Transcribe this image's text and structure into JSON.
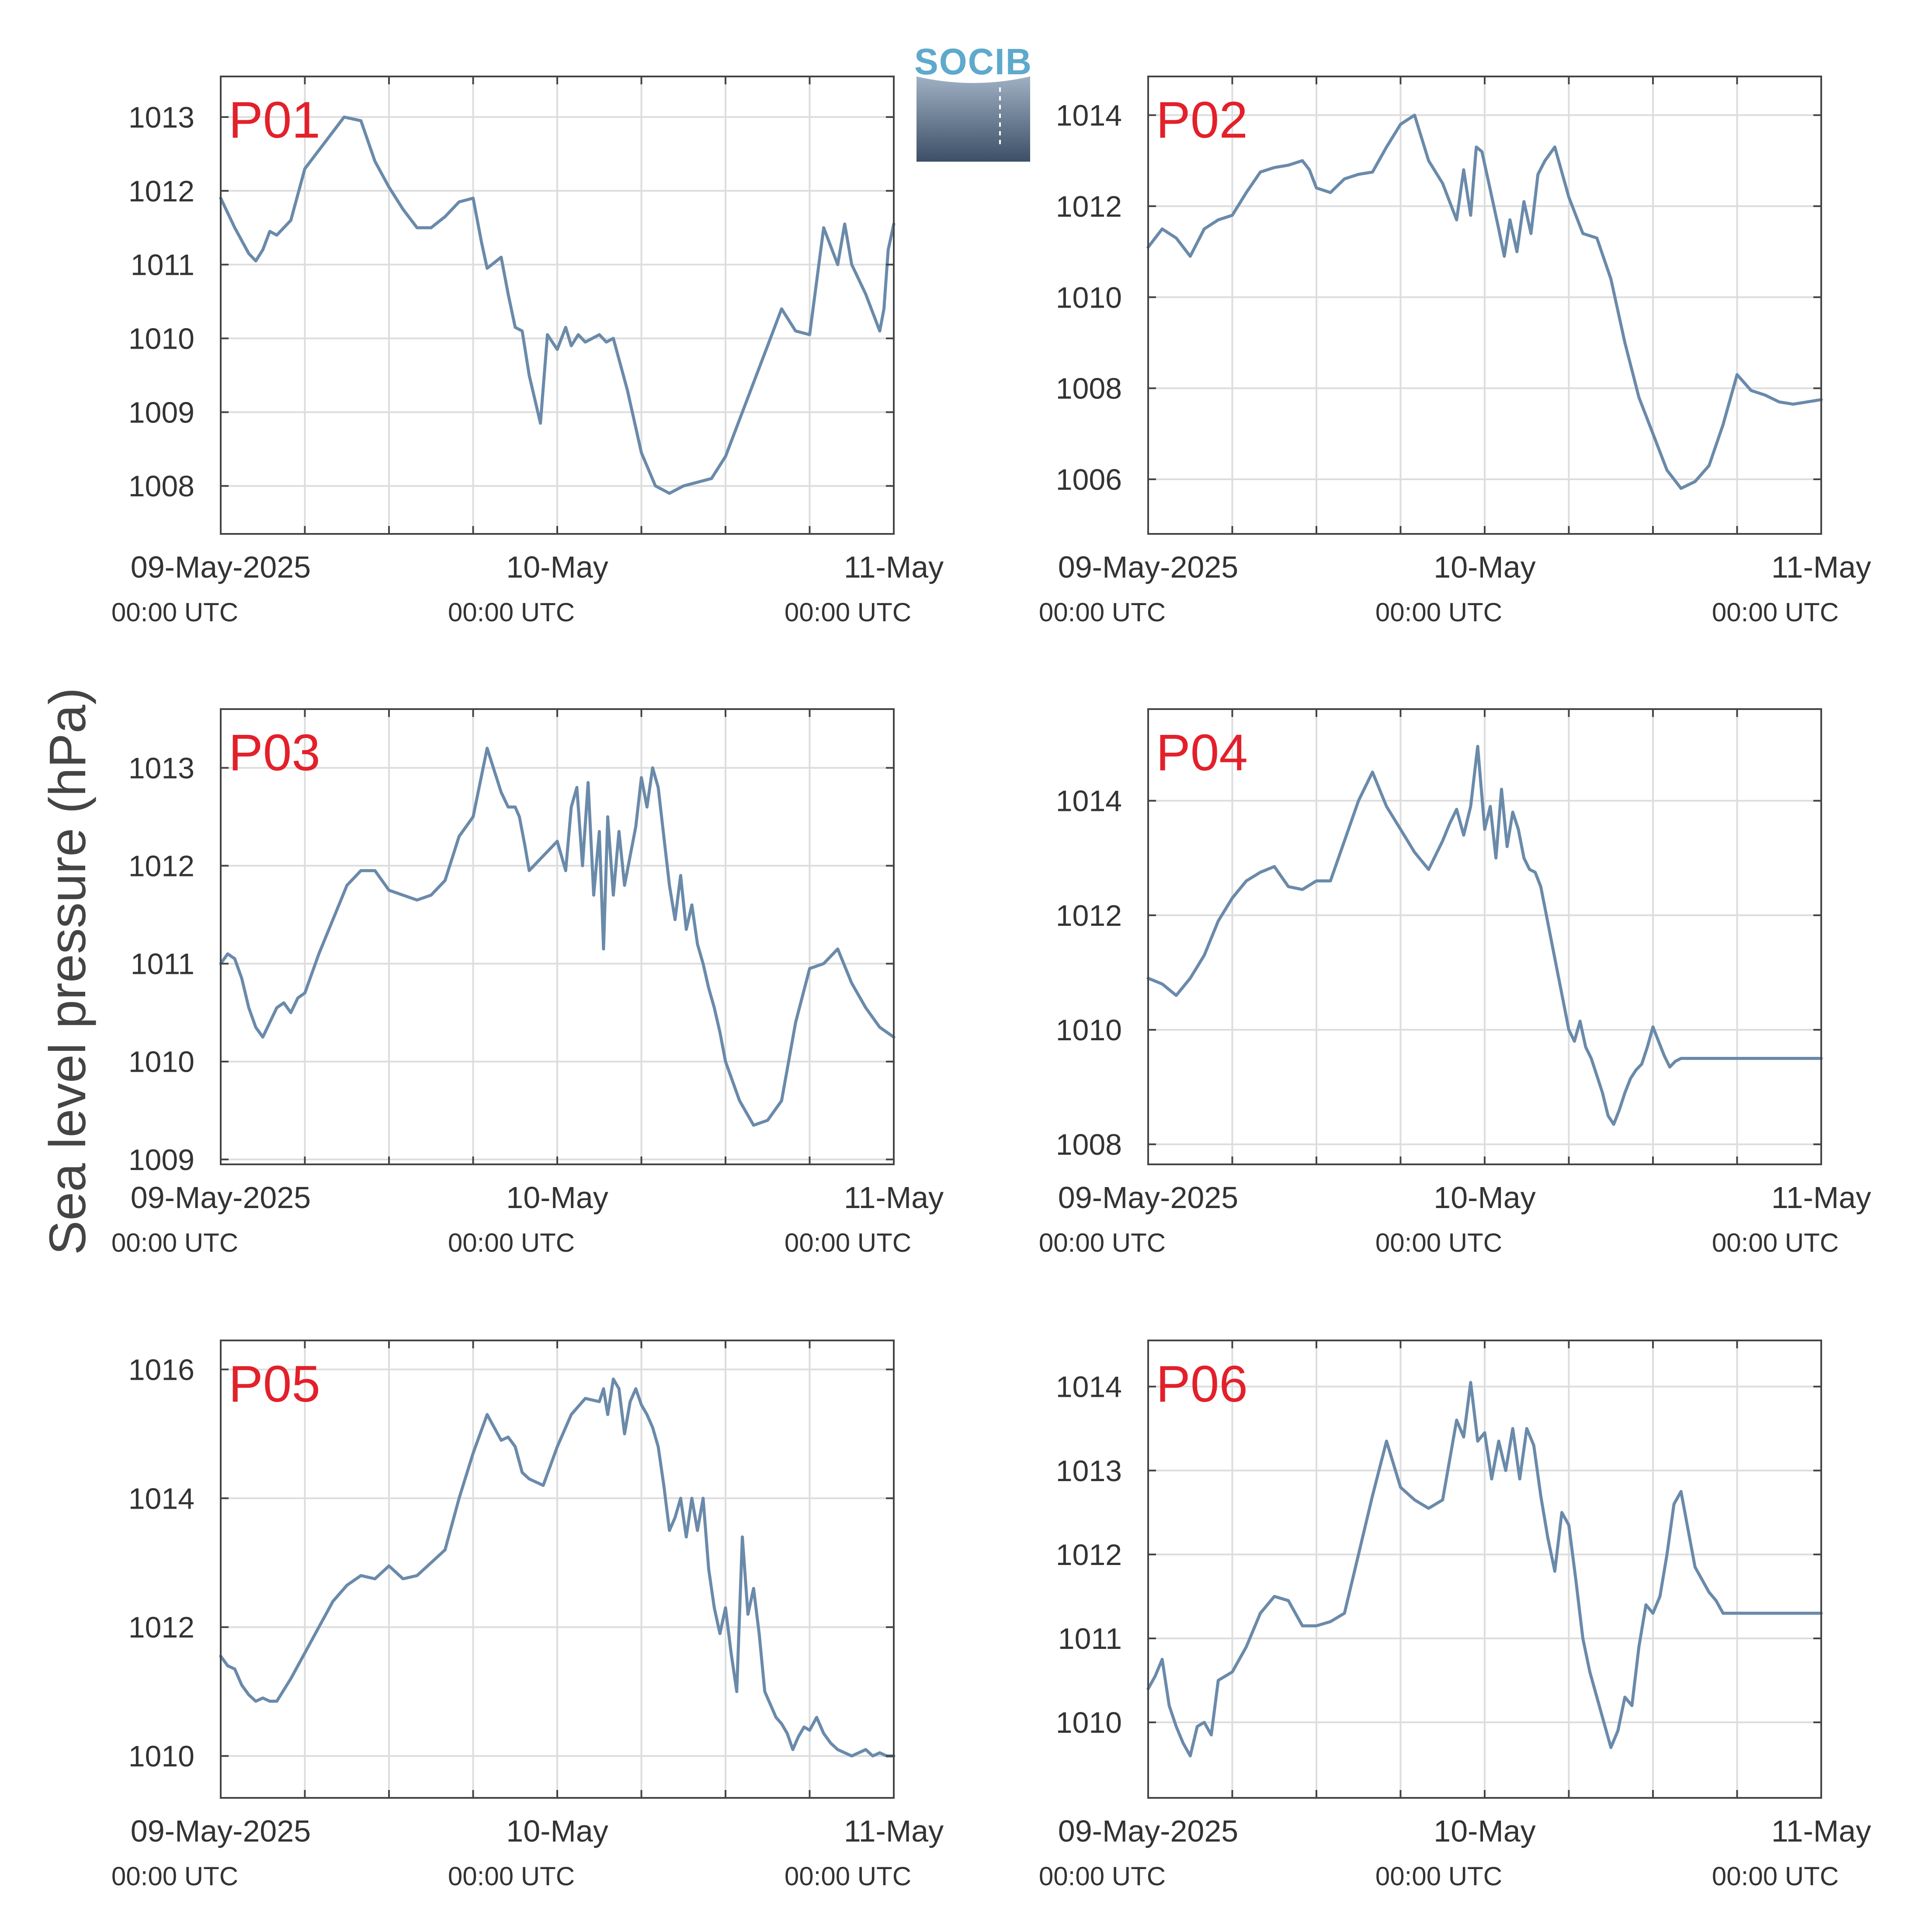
{
  "logo": {
    "text": "SOCIB"
  },
  "ylabel": "Sea level pressure (hPa)",
  "xticks": [
    {
      "line1": "09-May-2025",
      "line2": "00:00 UTC"
    },
    {
      "line1": "10-May",
      "line2": "00:00 UTC"
    },
    {
      "line1": "11-May",
      "line2": "00:00 UTC"
    }
  ],
  "colors": {
    "series": "#6a8aaa",
    "panel_label": "#e3202a",
    "grid": "#dddddd",
    "axes": "#444444"
  },
  "chart_data": [
    {
      "type": "line",
      "label": "P01",
      "xlim": [
        0,
        48
      ],
      "ylim": [
        1007.35,
        1013.55
      ],
      "yticks": [
        1008,
        1009,
        1010,
        1011,
        1012,
        1013
      ],
      "grid": true,
      "x": [
        0,
        1,
        2,
        2.5,
        3,
        3.5,
        4,
        5,
        6,
        7,
        8,
        8.8,
        10,
        11,
        12,
        13,
        14,
        15,
        16,
        17,
        18,
        18.6,
        19,
        20,
        20.5,
        21,
        21.5,
        22,
        22.8,
        23.3,
        24,
        24.6,
        25,
        25.5,
        26,
        27,
        27.5,
        28,
        29,
        30,
        31,
        32,
        33,
        34,
        35,
        36,
        37,
        38,
        39,
        40,
        41,
        42,
        43,
        44,
        44.5,
        45,
        46,
        47,
        47.3,
        47.6,
        48
      ],
      "values": [
        1011.9,
        1011.5,
        1011.15,
        1011.05,
        1011.2,
        1011.45,
        1011.4,
        1011.6,
        1012.3,
        1012.55,
        1012.8,
        1013.0,
        1012.95,
        1012.4,
        1012.05,
        1011.75,
        1011.5,
        1011.5,
        1011.65,
        1011.85,
        1011.9,
        1011.3,
        1010.95,
        1011.1,
        1010.6,
        1010.15,
        1010.1,
        1009.5,
        1008.85,
        1010.05,
        1009.85,
        1010.15,
        1009.9,
        1010.05,
        1009.95,
        1010.05,
        1009.95,
        1010.0,
        1009.3,
        1008.45,
        1008.0,
        1007.9,
        1008.0,
        1008.05,
        1008.1,
        1008.4,
        1008.9,
        1009.4,
        1009.9,
        1010.4,
        1010.1,
        1010.05,
        1011.5,
        1011.0,
        1011.55,
        1011.0,
        1010.6,
        1010.1,
        1010.4,
        1011.2,
        1011.55
      ]
    },
    {
      "type": "line",
      "label": "P02",
      "xlim": [
        0,
        48
      ],
      "ylim": [
        1004.8,
        1014.85
      ],
      "yticks": [
        1006,
        1008,
        1010,
        1012,
        1014
      ],
      "grid": true,
      "x": [
        0,
        1,
        2,
        3,
        4,
        5,
        6,
        7,
        8,
        9,
        10,
        11,
        11.5,
        12,
        13,
        14,
        15,
        16,
        17,
        18,
        19,
        20,
        21,
        22,
        22.5,
        23,
        23.4,
        23.8,
        24.3,
        25,
        25.4,
        25.8,
        26.3,
        26.8,
        27.3,
        27.8,
        28.3,
        29,
        30,
        31,
        32,
        33,
        34,
        35,
        36,
        37,
        38,
        39,
        40,
        41,
        42,
        43,
        44,
        45,
        46,
        47,
        48
      ],
      "values": [
        1011.1,
        1011.5,
        1011.3,
        1010.9,
        1011.5,
        1011.7,
        1011.8,
        1012.3,
        1012.75,
        1012.85,
        1012.9,
        1013.0,
        1012.8,
        1012.4,
        1012.3,
        1012.6,
        1012.7,
        1012.75,
        1013.3,
        1013.8,
        1014.0,
        1013.0,
        1012.5,
        1011.7,
        1012.8,
        1011.8,
        1013.3,
        1013.2,
        1012.5,
        1011.5,
        1010.9,
        1011.7,
        1011.0,
        1012.1,
        1011.4,
        1012.7,
        1013.0,
        1013.3,
        1012.2,
        1011.4,
        1011.3,
        1010.4,
        1009.0,
        1007.8,
        1007.0,
        1006.2,
        1005.8,
        1005.95,
        1006.3,
        1007.2,
        1008.3,
        1007.95,
        1007.85,
        1007.7,
        1007.65,
        1007.7,
        1007.75
      ]
    },
    {
      "type": "line",
      "label": "P03",
      "xlim": [
        0,
        48
      ],
      "ylim": [
        1008.95,
        1013.6
      ],
      "yticks": [
        1009,
        1010,
        1011,
        1012,
        1013
      ],
      "grid": true,
      "x": [
        0,
        0.5,
        1,
        1.5,
        2,
        2.5,
        3,
        3.5,
        4,
        4.5,
        5,
        5.5,
        6,
        7,
        8,
        9,
        10,
        11,
        12,
        13,
        14,
        15,
        16,
        17,
        18,
        19,
        20,
        20.5,
        21,
        21.3,
        21.7,
        22,
        23,
        24,
        24.6,
        25,
        25.4,
        25.8,
        26.2,
        26.6,
        27,
        27.3,
        27.6,
        28,
        28.4,
        28.8,
        29.2,
        29.6,
        30,
        30.4,
        30.8,
        31.2,
        31.6,
        32,
        32.4,
        32.8,
        33.2,
        33.6,
        34,
        34.4,
        34.8,
        35.2,
        35.6,
        36,
        37,
        38,
        39,
        40,
        41,
        42,
        43,
        44,
        45,
        46,
        47,
        48
      ],
      "values": [
        1011.0,
        1011.1,
        1011.05,
        1010.85,
        1010.55,
        1010.35,
        1010.25,
        1010.4,
        1010.55,
        1010.6,
        1010.5,
        1010.65,
        1010.7,
        1011.1,
        1011.45,
        1011.8,
        1011.95,
        1011.95,
        1011.75,
        1011.7,
        1011.65,
        1011.7,
        1011.85,
        1012.3,
        1012.5,
        1013.2,
        1012.75,
        1012.6,
        1012.6,
        1012.5,
        1012.2,
        1011.95,
        1012.1,
        1012.25,
        1011.95,
        1012.6,
        1012.8,
        1012.0,
        1012.85,
        1011.7,
        1012.35,
        1011.15,
        1012.5,
        1011.7,
        1012.35,
        1011.8,
        1012.1,
        1012.4,
        1012.9,
        1012.6,
        1013.0,
        1012.8,
        1012.3,
        1011.8,
        1011.45,
        1011.9,
        1011.35,
        1011.6,
        1011.2,
        1011.0,
        1010.75,
        1010.55,
        1010.3,
        1010.0,
        1009.6,
        1009.35,
        1009.4,
        1009.6,
        1010.4,
        1010.95,
        1011.0,
        1011.15,
        1010.8,
        1010.55,
        1010.35,
        1010.25
      ]
    },
    {
      "type": "line",
      "label": "P04",
      "xlim": [
        0,
        48
      ],
      "ylim": [
        1007.65,
        1015.6
      ],
      "yticks": [
        1008,
        1010,
        1012,
        1014
      ],
      "grid": true,
      "x": [
        0,
        1,
        2,
        3,
        4,
        5,
        6,
        7,
        8,
        9,
        10,
        11,
        12,
        13,
        14,
        15,
        16,
        17,
        18,
        19,
        20,
        21,
        21.5,
        22,
        22.5,
        23,
        23.5,
        24,
        24.4,
        24.8,
        25.2,
        25.6,
        26,
        26.4,
        26.8,
        27.2,
        27.6,
        28,
        28.4,
        28.8,
        29.2,
        29.6,
        30,
        30.4,
        30.8,
        31.2,
        31.6,
        32,
        32.4,
        32.8,
        33.2,
        33.6,
        34,
        34.4,
        34.8,
        35.2,
        35.6,
        36,
        36.4,
        36.8,
        37.2,
        37.6,
        38,
        38.5,
        39,
        40,
        41,
        42,
        43,
        44,
        45,
        46,
        47,
        48
      ],
      "values": [
        1010.9,
        1010.8,
        1010.6,
        1010.9,
        1011.3,
        1011.9,
        1012.3,
        1012.6,
        1012.75,
        1012.85,
        1012.5,
        1012.45,
        1012.6,
        1012.6,
        1013.3,
        1014.0,
        1014.5,
        1013.9,
        1013.5,
        1013.1,
        1012.8,
        1013.3,
        1013.6,
        1013.85,
        1013.4,
        1013.9,
        1014.95,
        1013.5,
        1013.9,
        1013.0,
        1014.2,
        1013.2,
        1013.8,
        1013.5,
        1013.0,
        1012.8,
        1012.75,
        1012.5,
        1012.0,
        1011.5,
        1011.0,
        1010.5,
        1010.0,
        1009.8,
        1010.15,
        1009.7,
        1009.5,
        1009.2,
        1008.9,
        1008.5,
        1008.35,
        1008.6,
        1008.9,
        1009.15,
        1009.3,
        1009.4,
        1009.7,
        1010.05,
        1009.8,
        1009.55,
        1009.35,
        1009.45,
        1009.5,
        1009.5,
        1009.5,
        1009.5,
        1009.5,
        1009.5,
        1009.5,
        1009.5,
        1009.5,
        1009.5,
        1009.5,
        1009.5
      ]
    },
    {
      "type": "line",
      "label": "P05",
      "xlim": [
        0,
        48
      ],
      "ylim": [
        1009.35,
        1016.45
      ],
      "yticks": [
        1010,
        1012,
        1014,
        1016
      ],
      "grid": true,
      "x": [
        0,
        0.5,
        1,
        1.5,
        2,
        2.5,
        3,
        3.5,
        4,
        5,
        6,
        7,
        8,
        9,
        10,
        11,
        12,
        13,
        14,
        15,
        16,
        17,
        18,
        19,
        20,
        20.5,
        21,
        21.5,
        22,
        23,
        24,
        25,
        26,
        27,
        27.3,
        27.6,
        28,
        28.4,
        28.8,
        29.2,
        29.6,
        30,
        30.4,
        30.8,
        31.2,
        31.6,
        32,
        32.4,
        32.8,
        33.2,
        33.6,
        34,
        34.4,
        34.8,
        35.2,
        35.6,
        36,
        36.4,
        36.8,
        37.2,
        37.6,
        38,
        38.4,
        38.8,
        39.2,
        39.6,
        40,
        40.4,
        40.8,
        41.2,
        41.6,
        42,
        42.5,
        43,
        43.5,
        44,
        44.5,
        45,
        45.5,
        46,
        46.5,
        47,
        47.5,
        48
      ],
      "values": [
        1011.55,
        1011.4,
        1011.35,
        1011.1,
        1010.95,
        1010.85,
        1010.9,
        1010.85,
        1010.85,
        1011.2,
        1011.6,
        1012.0,
        1012.4,
        1012.65,
        1012.8,
        1012.75,
        1012.95,
        1012.75,
        1012.8,
        1013.0,
        1013.2,
        1014.0,
        1014.7,
        1015.3,
        1014.9,
        1014.95,
        1014.8,
        1014.4,
        1014.3,
        1014.2,
        1014.8,
        1015.3,
        1015.55,
        1015.5,
        1015.7,
        1015.3,
        1015.85,
        1015.7,
        1015.0,
        1015.5,
        1015.7,
        1015.45,
        1015.3,
        1015.1,
        1014.8,
        1014.2,
        1013.5,
        1013.7,
        1014.0,
        1013.4,
        1014.0,
        1013.5,
        1014.0,
        1012.9,
        1012.3,
        1011.9,
        1012.3,
        1011.6,
        1011.0,
        1013.4,
        1012.2,
        1012.6,
        1011.9,
        1011.0,
        1010.8,
        1010.6,
        1010.5,
        1010.35,
        1010.1,
        1010.3,
        1010.45,
        1010.4,
        1010.6,
        1010.35,
        1010.2,
        1010.1,
        1010.05,
        1010.0,
        1010.05,
        1010.1,
        1010.0,
        1010.05,
        1010.0,
        1010.0
      ]
    },
    {
      "type": "line",
      "label": "P06",
      "xlim": [
        0,
        48
      ],
      "ylim": [
        1009.1,
        1014.55
      ],
      "yticks": [
        1010,
        1011,
        1012,
        1013,
        1014
      ],
      "grid": true,
      "x": [
        0,
        0.5,
        1,
        1.5,
        2,
        2.5,
        3,
        3.5,
        4,
        4.5,
        5,
        5.5,
        6,
        7,
        8,
        9,
        10,
        11,
        12,
        13,
        14,
        15,
        16,
        17,
        18,
        19,
        20,
        21,
        22,
        22.5,
        23,
        23.5,
        24,
        24.5,
        25,
        25.5,
        26,
        26.5,
        27,
        27.5,
        28,
        28.5,
        29,
        29.5,
        30,
        30.5,
        31,
        31.5,
        32,
        32.5,
        33,
        33.5,
        34,
        34.5,
        35,
        35.5,
        36,
        36.5,
        37,
        37.5,
        38,
        38.5,
        39,
        39.5,
        40,
        40.5,
        41,
        41.5,
        42,
        42.5,
        43,
        43.5,
        44,
        44.5,
        45,
        45.5,
        46,
        46.5,
        47,
        47.5,
        48
      ],
      "values": [
        1010.4,
        1010.55,
        1010.75,
        1010.2,
        1009.95,
        1009.75,
        1009.6,
        1009.95,
        1010.0,
        1009.85,
        1010.5,
        1010.55,
        1010.6,
        1010.9,
        1011.3,
        1011.5,
        1011.45,
        1011.15,
        1011.15,
        1011.2,
        1011.3,
        1012.0,
        1012.7,
        1013.35,
        1012.8,
        1012.65,
        1012.55,
        1012.65,
        1013.6,
        1013.4,
        1014.05,
        1013.35,
        1013.45,
        1012.9,
        1013.35,
        1013.0,
        1013.5,
        1012.9,
        1013.5,
        1013.3,
        1012.7,
        1012.2,
        1011.8,
        1012.5,
        1012.35,
        1011.7,
        1011.0,
        1010.6,
        1010.3,
        1010.0,
        1009.7,
        1009.9,
        1010.3,
        1010.2,
        1010.9,
        1011.4,
        1011.3,
        1011.5,
        1012.0,
        1012.6,
        1012.75,
        1012.3,
        1011.85,
        1011.7,
        1011.55,
        1011.45,
        1011.3,
        1011.3,
        1011.3,
        1011.3,
        1011.3,
        1011.3,
        1011.3,
        1011.3,
        1011.3,
        1011.3,
        1011.3,
        1011.3,
        1011.3,
        1011.3,
        1011.3
      ]
    }
  ]
}
